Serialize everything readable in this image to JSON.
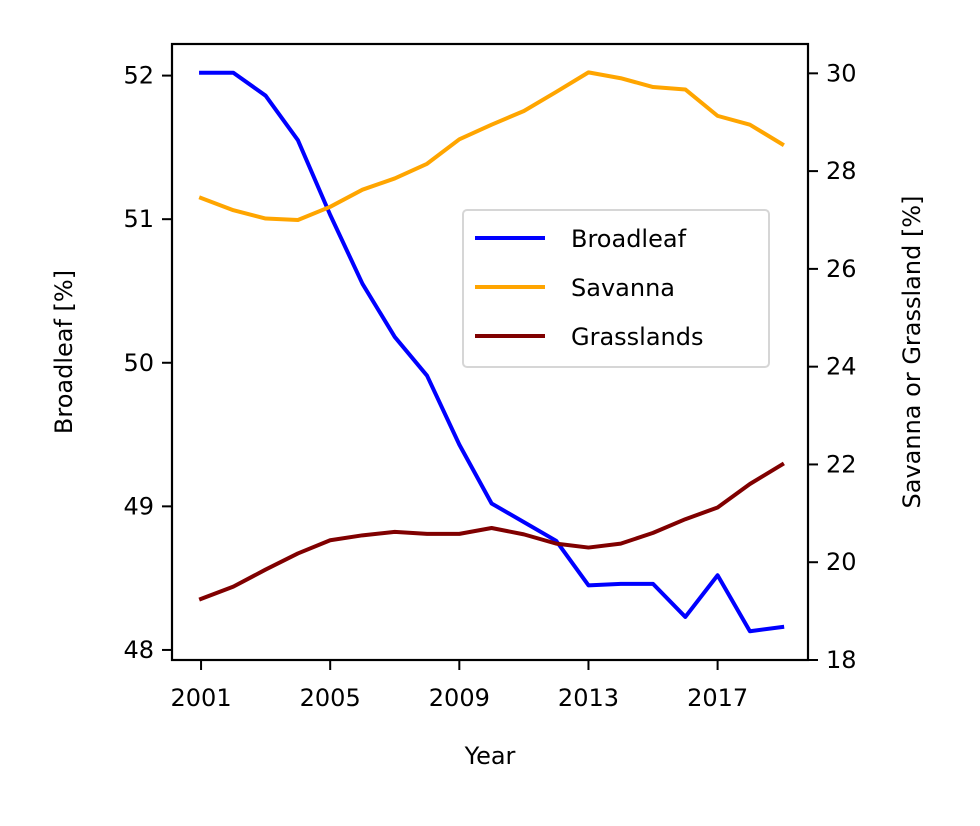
{
  "chart_data": {
    "type": "line",
    "title": "",
    "xlabel": "Year",
    "ylabel_left": "Broadleaf [%]",
    "ylabel_right": "Savanna or Grassland [%]",
    "x": [
      2001,
      2002,
      2003,
      2004,
      2005,
      2006,
      2007,
      2008,
      2009,
      2010,
      2011,
      2012,
      2013,
      2014,
      2015,
      2016,
      2017,
      2018,
      2019
    ],
    "xticks": [
      2001,
      2005,
      2009,
      2013,
      2017
    ],
    "xtick_labels": [
      "2001",
      "2005",
      "2009",
      "2013",
      "2017"
    ],
    "xlim": [
      2000.1,
      2019.8
    ],
    "ylim_left": [
      47.93,
      52.22
    ],
    "yticks_left": [
      48,
      49,
      50,
      51,
      52
    ],
    "ytick_labels_left": [
      "48",
      "49",
      "50",
      "51",
      "52"
    ],
    "ylim_right": [
      18,
      30.6
    ],
    "yticks_right": [
      18,
      20,
      22,
      24,
      26,
      28,
      30
    ],
    "ytick_labels_right": [
      "18",
      "20",
      "22",
      "24",
      "26",
      "28",
      "30"
    ],
    "legend_position": "center-right",
    "grid": false,
    "series": [
      {
        "name": "Broadleaf",
        "axis": "left",
        "color": "#0000ff",
        "values": [
          52.02,
          52.02,
          51.86,
          51.55,
          51.03,
          50.55,
          50.18,
          49.91,
          49.43,
          49.02,
          48.89,
          48.76,
          48.45,
          48.46,
          48.46,
          48.23,
          48.52,
          48.13,
          48.16
        ]
      },
      {
        "name": "Savanna",
        "axis": "right",
        "color": "#ffa500",
        "values": [
          27.45,
          27.2,
          27.03,
          27.0,
          27.27,
          27.62,
          27.85,
          28.15,
          28.65,
          28.95,
          29.23,
          29.62,
          30.02,
          29.9,
          29.72,
          29.67,
          29.13,
          28.95,
          28.55
        ]
      },
      {
        "name": "Grasslands",
        "axis": "right",
        "color": "#800000",
        "values": [
          19.25,
          19.5,
          19.85,
          20.18,
          20.45,
          20.55,
          20.62,
          20.58,
          20.58,
          20.7,
          20.57,
          20.38,
          20.3,
          20.38,
          20.6,
          20.88,
          21.12,
          21.6,
          22.0
        ]
      }
    ]
  }
}
